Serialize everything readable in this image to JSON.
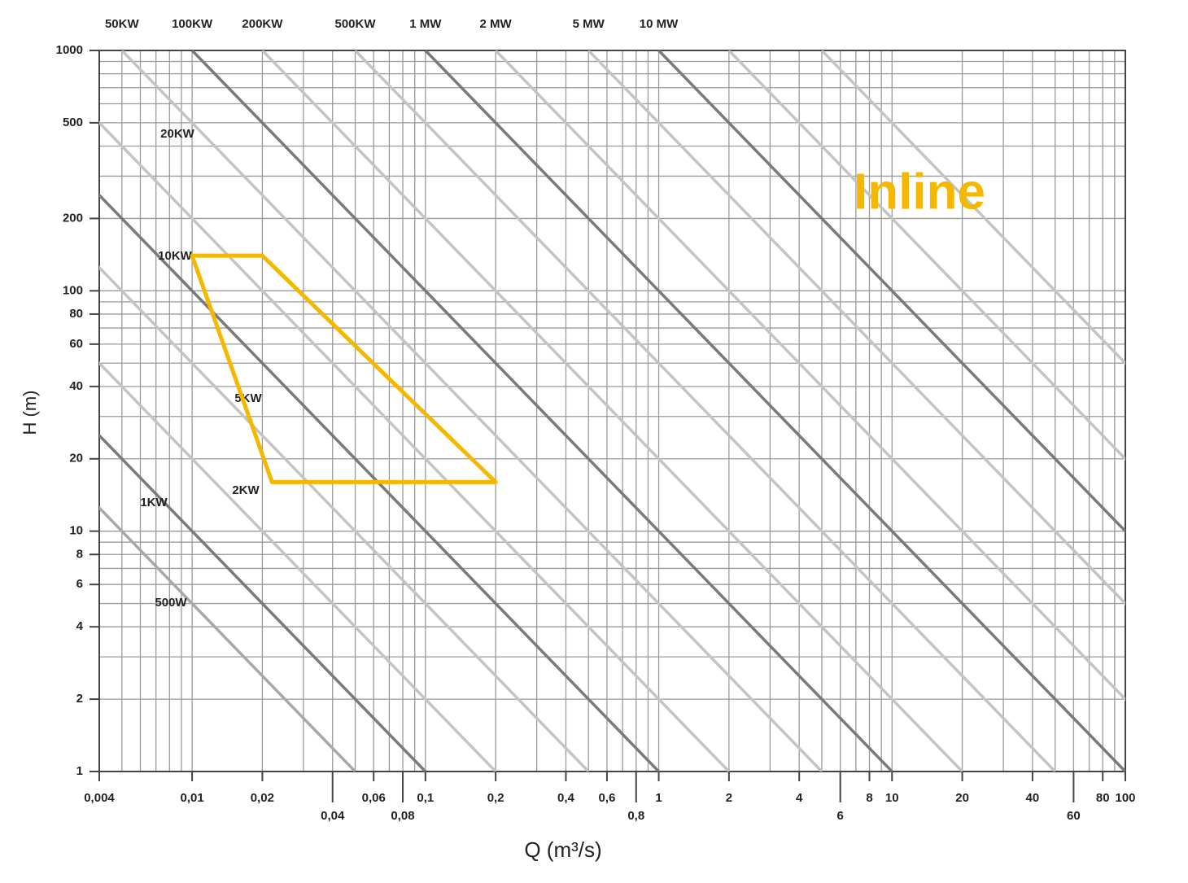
{
  "chart_data": {
    "type": "power-chart",
    "xlabel": "Q (m³/s)",
    "ylabel": "H (m)",
    "log_x": true,
    "log_y": true,
    "xlim": [
      0.004,
      100
    ],
    "ylim": [
      1,
      1000
    ],
    "xticks": [
      {
        "value": 0.004,
        "label": "0,004"
      },
      {
        "value": 0.01,
        "label": "0,01"
      },
      {
        "value": 0.02,
        "label": "0,02"
      },
      {
        "value": 0.04,
        "label": "0,04"
      },
      {
        "value": 0.06,
        "label": "0,06"
      },
      {
        "value": 0.08,
        "label": "0,08"
      },
      {
        "value": 0.1,
        "label": "0,1"
      },
      {
        "value": 0.2,
        "label": "0,2"
      },
      {
        "value": 0.4,
        "label": "0,4"
      },
      {
        "value": 0.6,
        "label": "0,6"
      },
      {
        "value": 0.8,
        "label": "0,8"
      },
      1,
      2,
      4,
      6,
      8,
      10,
      20,
      40,
      60,
      80,
      100
    ],
    "yticks": [
      1,
      2,
      4,
      6,
      8,
      10,
      20,
      40,
      60,
      80,
      100,
      200,
      500,
      1000
    ],
    "x_grid": [
      0.004,
      0.005,
      0.006,
      0.007,
      0.008,
      0.009,
      0.01,
      0.02,
      0.03,
      0.04,
      0.05,
      0.06,
      0.07,
      0.08,
      0.09,
      0.1,
      0.2,
      0.3,
      0.4,
      0.5,
      0.6,
      0.7,
      0.8,
      0.9,
      1,
      2,
      3,
      4,
      5,
      6,
      7,
      8,
      9,
      10,
      20,
      30,
      40,
      50,
      60,
      70,
      80,
      90,
      100
    ],
    "y_grid": [
      1,
      2,
      3,
      4,
      5,
      6,
      7,
      8,
      9,
      10,
      20,
      30,
      40,
      50,
      60,
      70,
      80,
      90,
      100,
      200,
      300,
      400,
      500,
      600,
      700,
      800,
      900,
      1000
    ],
    "grid_color": "#9a9a9a",
    "series": [
      {
        "name": "500W",
        "qh": 0.05,
        "color": "#a8a8a8"
      },
      {
        "name": "1KW",
        "qh": 0.1,
        "color": "#7a7a7a"
      },
      {
        "name": "2KW",
        "qh": 0.2,
        "color": "#c4c4c4"
      },
      {
        "name": "5KW",
        "qh": 0.5,
        "color": "#c4c4c4"
      },
      {
        "name": "10KW",
        "qh": 1,
        "color": "#7a7a7a"
      },
      {
        "name": "20KW",
        "qh": 2,
        "color": "#c4c4c4"
      },
      {
        "name": "50KW",
        "qh": 5,
        "color": "#c4c4c4"
      },
      {
        "name": "100KW",
        "qh": 10,
        "color": "#7a7a7a"
      },
      {
        "name": "200KW",
        "qh": 20,
        "color": "#c4c4c4"
      },
      {
        "name": "500KW",
        "qh": 50,
        "color": "#c4c4c4"
      },
      {
        "name": "1 MW",
        "qh": 100,
        "color": "#7a7a7a"
      },
      {
        "name": "2 MW",
        "qh": 200,
        "color": "#c4c4c4"
      },
      {
        "name": "5 MW",
        "qh": 500,
        "color": "#c4c4c4"
      },
      {
        "name": "10 MW",
        "qh": 1000,
        "color": "#7a7a7a"
      },
      {
        "name": null,
        "qh": 2000,
        "color": "#c4c4c4"
      },
      {
        "name": null,
        "qh": 5000,
        "color": "#c4c4c4"
      }
    ],
    "region": {
      "label": "Inline",
      "color": "#f5b800",
      "q": [
        0.01,
        0.02,
        0.2,
        0.022
      ],
      "h": [
        140,
        140,
        16,
        16
      ]
    }
  }
}
